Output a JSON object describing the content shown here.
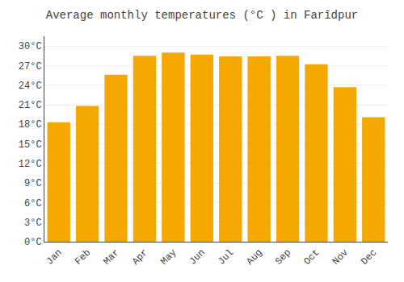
{
  "chart_data": {
    "type": "bar",
    "title": "Average monthly temperatures (°C ) in Farīdpur",
    "categories": [
      "Jan",
      "Feb",
      "Mar",
      "Apr",
      "May",
      "Jun",
      "Jul",
      "Aug",
      "Sep",
      "Oct",
      "Nov",
      "Dec"
    ],
    "values": [
      18.3,
      20.8,
      25.6,
      28.5,
      29.0,
      28.7,
      28.4,
      28.4,
      28.5,
      27.2,
      23.7,
      19.1
    ],
    "color": "#F5A800",
    "ylim": [
      0,
      31.5
    ],
    "yticks": [
      {
        "value": 0,
        "label": "0°C"
      },
      {
        "value": 3,
        "label": "3°C"
      },
      {
        "value": 6,
        "label": "6°C"
      },
      {
        "value": 9,
        "label": "9°C"
      },
      {
        "value": 12,
        "label": "12°C"
      },
      {
        "value": 15,
        "label": "15°C"
      },
      {
        "value": 18,
        "label": "18°C"
      },
      {
        "value": 21,
        "label": "21°C"
      },
      {
        "value": 24,
        "label": "24°C"
      },
      {
        "value": 27,
        "label": "27°C"
      },
      {
        "value": 30,
        "label": "30°C"
      }
    ],
    "grid": true
  }
}
